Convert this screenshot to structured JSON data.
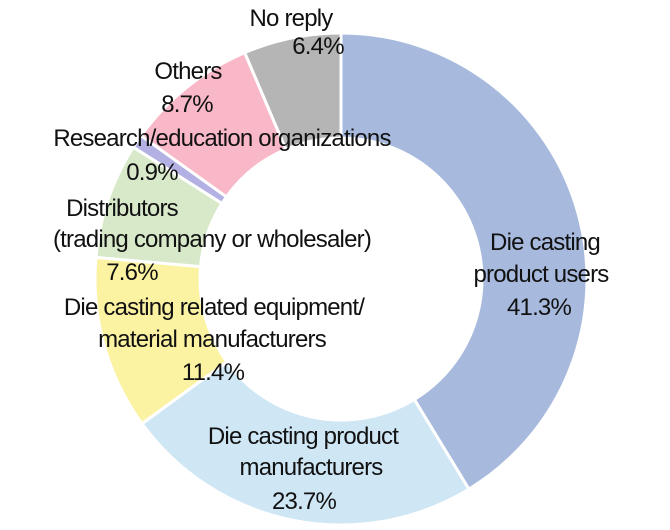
{
  "chart_data": {
    "type": "pie",
    "subtype": "donut",
    "title": "",
    "units": "%",
    "total": 100.0,
    "legend": "none",
    "data_labels": "outside-and-inside, text with percent",
    "segments": [
      {
        "id": "product-users",
        "label": "Die casting product users",
        "value": 41.3,
        "pct_label": "41.3%",
        "color": "#a7bade",
        "label_lines": [
          "Die casting",
          "product users",
          "41.3%"
        ]
      },
      {
        "id": "product-manufacturers",
        "label": "Die casting product manufacturers",
        "value": 23.7,
        "pct_label": "23.7%",
        "color": "#cfe6f5",
        "label_lines": [
          "Die casting product",
          "manufacturers",
          "23.7%"
        ]
      },
      {
        "id": "equipment-material-manufacturers",
        "label": "Die casting related equipment/material manufacturers",
        "value": 11.4,
        "pct_label": "11.4%",
        "color": "#fbf3a2",
        "label_lines": [
          "Die casting related equipment/",
          "material manufacturers",
          "11.4%"
        ]
      },
      {
        "id": "distributors",
        "label": "Distributors (trading company or wholesaler)",
        "value": 7.6,
        "pct_label": "7.6%",
        "color": "#d8e9ca",
        "label_lines": [
          "Distributors",
          "(trading company or wholesaler)",
          "7.6%"
        ]
      },
      {
        "id": "research-education",
        "label": "Research/education organizations",
        "value": 0.9,
        "pct_label": "0.9%",
        "color": "#b3b1e4",
        "label_lines": [
          "Research/education organizations",
          "0.9%"
        ]
      },
      {
        "id": "others",
        "label": "Others",
        "value": 8.7,
        "pct_label": "8.7%",
        "color": "#f8b8c8",
        "label_lines": [
          "Others",
          "8.7%"
        ]
      },
      {
        "id": "no-reply",
        "label": "No reply",
        "value": 6.4,
        "pct_label": "6.4%",
        "color": "#b5b5b5",
        "label_lines": [
          "No reply",
          "6.4%"
        ]
      }
    ],
    "layout": {
      "start_angle_deg": 0,
      "direction": "clockwise",
      "separator_color": "#ffffff",
      "background_color": "#ffffff",
      "text_color": "#111111"
    }
  }
}
